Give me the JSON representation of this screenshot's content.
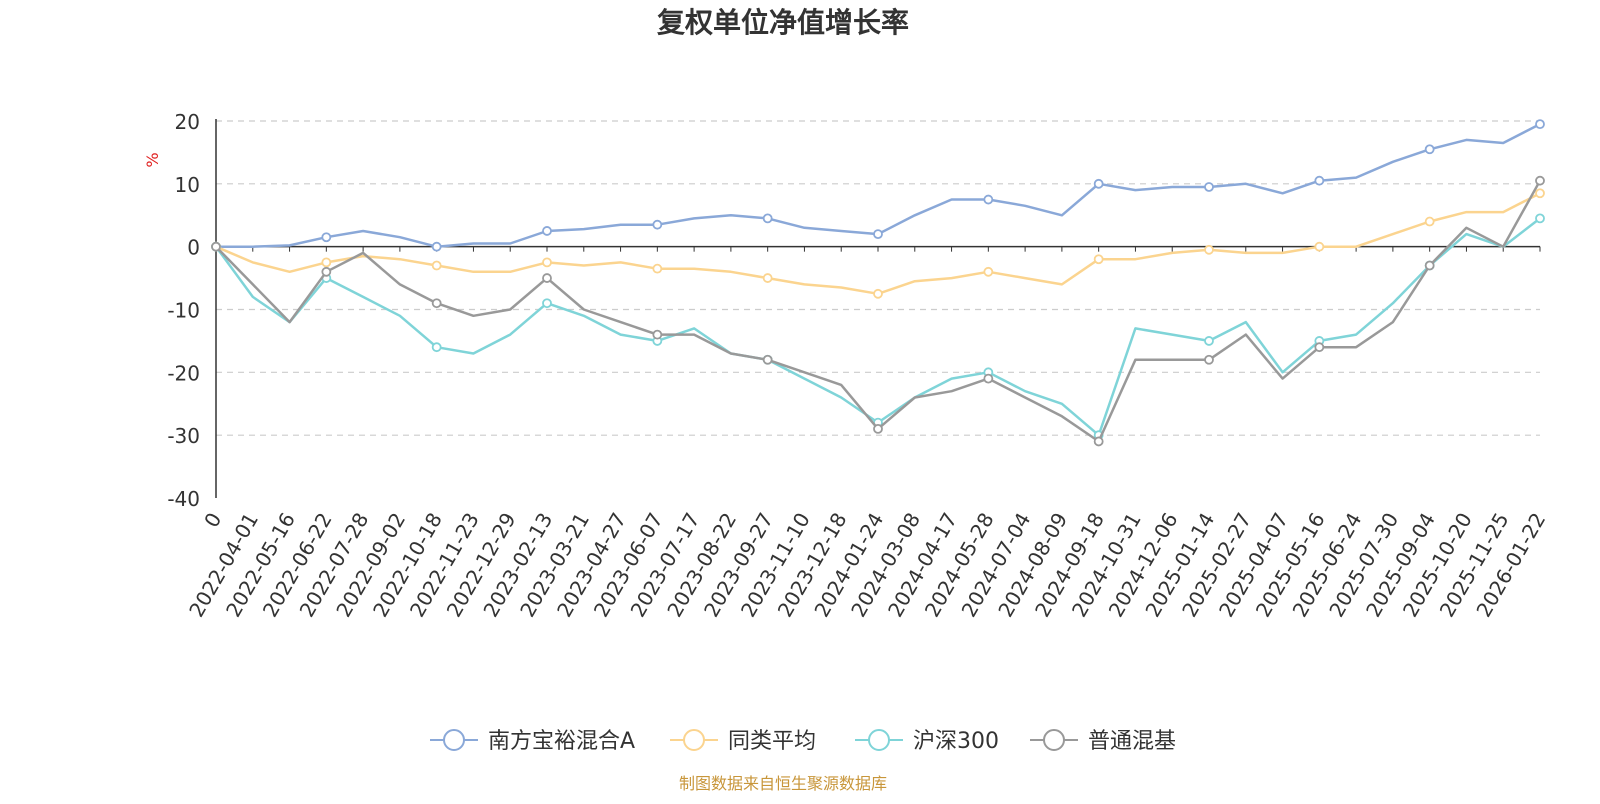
{
  "chart_data": {
    "type": "line",
    "title": "复权单位净值增长率",
    "ylabel": "%",
    "ylim": [
      -40,
      20
    ],
    "yticks": [
      20,
      10,
      0,
      -10,
      -20,
      -30,
      -40
    ],
    "x_labels": [
      "0",
      "2022-04-01",
      "2022-05-16",
      "2022-06-22",
      "2022-07-28",
      "2022-09-02",
      "2022-10-18",
      "2022-11-23",
      "2022-12-29",
      "2023-02-13",
      "2023-03-21",
      "2023-04-27",
      "2023-06-07",
      "2023-07-17",
      "2023-08-22",
      "2023-09-27",
      "2023-11-10",
      "2023-12-18",
      "2024-01-24",
      "2024-03-08",
      "2024-04-17",
      "2024-05-28",
      "2024-07-04",
      "2024-08-09",
      "2024-09-18",
      "2024-10-31",
      "2024-12-06",
      "2025-01-14",
      "2025-02-27",
      "2025-04-07",
      "2025-05-16",
      "2025-06-24",
      "2025-07-30",
      "2025-09-04",
      "2025-10-20",
      "2025-11-25",
      "2026-01-22"
    ],
    "legend_position": "bottom",
    "series": [
      {
        "name": "南方宝裕混合A",
        "color": "#8aa8d8",
        "values": [
          0,
          0,
          0.2,
          1.5,
          2.5,
          1.5,
          0,
          0.5,
          0.5,
          2.5,
          2.8,
          3.5,
          3.5,
          4.5,
          5,
          4.5,
          3,
          2.5,
          2,
          5,
          7.5,
          7.5,
          6.5,
          5,
          10,
          9,
          9.5,
          9.5,
          10,
          8.5,
          10.5,
          11,
          13.5,
          15.5,
          17,
          16.5,
          19.5
        ]
      },
      {
        "name": "同类平均",
        "color": "#fbd48f",
        "values": [
          0,
          -2.5,
          -4,
          -2.5,
          -1.5,
          -2,
          -3,
          -4,
          -4,
          -2.5,
          -3,
          -2.5,
          -3.5,
          -3.5,
          -4,
          -5,
          -6,
          -6.5,
          -7.5,
          -5.5,
          -5,
          -4,
          -5,
          -6,
          -2,
          -2,
          -1,
          -0.5,
          -1,
          -1,
          0,
          0,
          2,
          4,
          5.5,
          5.5,
          8.5
        ]
      },
      {
        "name": "沪深300",
        "color": "#7fd4d8",
        "values": [
          0,
          -8,
          -12,
          -5,
          -8,
          -11,
          -16,
          -17,
          -14,
          -9,
          -11,
          -14,
          -15,
          -13,
          -17,
          -18,
          -21,
          -24,
          -28,
          -24,
          -21,
          -20,
          -23,
          -25,
          -30,
          -13,
          -14,
          -15,
          -12,
          -20,
          -15,
          -14,
          -9,
          -3,
          2,
          0,
          4.5
        ]
      },
      {
        "name": "普通混基",
        "color": "#999999",
        "values": [
          0,
          -6,
          -12,
          -4,
          -1,
          -6,
          -9,
          -11,
          -10,
          -5,
          -10,
          -12,
          -14,
          -14,
          -17,
          -18,
          -20,
          -22,
          -29,
          -24,
          -23,
          -21,
          -24,
          -27,
          -31,
          -18,
          -18,
          -18,
          -14,
          -21,
          -16,
          -16,
          -12,
          -3,
          3,
          0,
          10.5
        ]
      }
    ]
  },
  "source_note": "制图数据来自恒生聚源数据库"
}
